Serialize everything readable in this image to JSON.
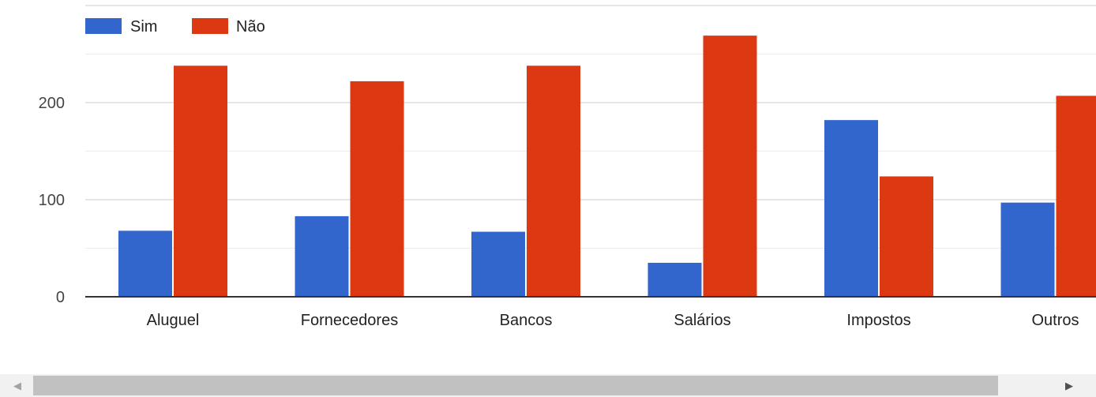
{
  "chart_data": {
    "type": "bar",
    "categories": [
      "Aluguel",
      "Fornecedores",
      "Bancos",
      "Salários",
      "Impostos",
      "Outros"
    ],
    "series": [
      {
        "name": "Sim",
        "color": "#3366cc",
        "values": [
          68,
          83,
          67,
          35,
          182,
          97
        ]
      },
      {
        "name": "Não",
        "color": "#dc3912",
        "values": [
          238,
          222,
          238,
          269,
          124,
          207
        ]
      }
    ],
    "yticks": [
      0,
      100,
      200
    ],
    "ylim": [
      0,
      300
    ],
    "grid": true,
    "legend_position": "top-left"
  },
  "scrollbar": {
    "left_arrow_icon": "triangle-left-icon",
    "right_arrow_icon": "triangle-right-icon"
  }
}
